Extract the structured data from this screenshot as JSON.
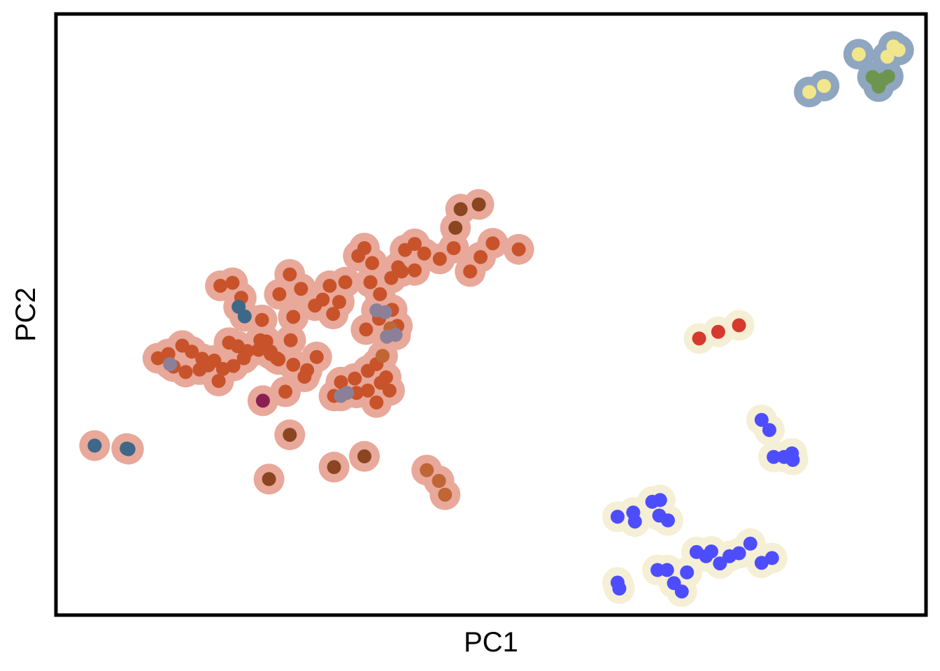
{
  "chart_data": {
    "type": "scatter",
    "xlabel": "PC1",
    "ylabel": "PC2",
    "xlim": [
      0,
      1
    ],
    "ylim": [
      0,
      1
    ],
    "grid": false,
    "ticks": false,
    "legend": "none",
    "halo_colors": {
      "salmon": "#e8a89a",
      "cream": "#f5efd5",
      "slate": "#8fa6c0"
    },
    "series": [
      {
        "color": "#c8532a",
        "halo": "salmon",
        "points": [
          [
            0.188,
            0.548
          ],
          [
            0.202,
            0.553
          ],
          [
            0.212,
            0.528
          ],
          [
            0.236,
            0.491
          ],
          [
            0.256,
            0.534
          ],
          [
            0.268,
            0.567
          ],
          [
            0.272,
            0.496
          ],
          [
            0.281,
            0.543
          ],
          [
            0.297,
            0.515
          ],
          [
            0.306,
            0.525
          ],
          [
            0.314,
            0.548
          ],
          [
            0.318,
            0.501
          ],
          [
            0.325,
            0.521
          ],
          [
            0.332,
            0.554
          ],
          [
            0.347,
            0.598
          ],
          [
            0.354,
            0.611
          ],
          [
            0.363,
            0.586
          ],
          [
            0.361,
            0.554
          ],
          [
            0.372,
            0.534
          ],
          [
            0.385,
            0.561
          ],
          [
            0.393,
            0.579
          ],
          [
            0.401,
            0.608
          ],
          [
            0.412,
            0.618
          ],
          [
            0.423,
            0.602
          ],
          [
            0.441,
            0.593
          ],
          [
            0.457,
            0.611
          ],
          [
            0.476,
            0.572
          ],
          [
            0.488,
            0.596
          ],
          [
            0.502,
            0.619
          ],
          [
            0.532,
            0.609
          ],
          [
            0.412,
            0.574
          ],
          [
            0.397,
            0.572
          ],
          [
            0.269,
            0.457
          ],
          [
            0.253,
            0.427
          ],
          [
            0.263,
            0.371
          ],
          [
            0.288,
            0.407
          ],
          [
            0.272,
            0.416
          ],
          [
            0.246,
            0.434
          ],
          [
            0.232,
            0.441
          ],
          [
            0.215,
            0.427
          ],
          [
            0.203,
            0.414
          ],
          [
            0.191,
            0.409
          ],
          [
            0.167,
            0.426
          ],
          [
            0.148,
            0.404
          ],
          [
            0.134,
            0.413
          ],
          [
            0.128,
            0.434
          ],
          [
            0.116,
            0.427
          ],
          [
            0.144,
            0.448
          ],
          [
            0.155,
            0.438
          ],
          [
            0.164,
            0.408
          ],
          [
            0.181,
            0.423
          ],
          [
            0.186,
            0.389
          ],
          [
            0.174,
            0.415
          ],
          [
            0.198,
            0.453
          ],
          [
            0.208,
            0.447
          ],
          [
            0.219,
            0.439
          ],
          [
            0.234,
            0.457
          ],
          [
            0.246,
            0.438
          ],
          [
            0.255,
            0.425
          ],
          [
            0.285,
            0.396
          ],
          [
            0.299,
            0.429
          ],
          [
            0.241,
            0.455
          ],
          [
            0.319,
            0.364
          ],
          [
            0.327,
            0.387
          ],
          [
            0.343,
            0.393
          ],
          [
            0.358,
            0.406
          ],
          [
            0.368,
            0.417
          ],
          [
            0.373,
            0.386
          ],
          [
            0.379,
            0.395
          ],
          [
            0.383,
            0.373
          ],
          [
            0.358,
            0.373
          ],
          [
            0.345,
            0.369
          ],
          [
            0.368,
            0.353
          ],
          [
            0.356,
            0.475
          ],
          [
            0.371,
            0.493
          ],
          [
            0.386,
            0.508
          ],
          [
            0.392,
            0.481
          ]
        ]
      },
      {
        "color": "#8b4520",
        "halo": "salmon",
        "points": [
          [
            0.465,
            0.676
          ],
          [
            0.486,
            0.684
          ],
          [
            0.459,
            0.645
          ],
          [
            0.268,
            0.299
          ],
          [
            0.354,
            0.263
          ],
          [
            0.319,
            0.245
          ],
          [
            0.244,
            0.225
          ]
        ]
      },
      {
        "color": "#c06535",
        "halo": "salmon",
        "points": [
          [
            0.384,
            0.477
          ],
          [
            0.375,
            0.431
          ],
          [
            0.426,
            0.24
          ],
          [
            0.44,
            0.222
          ],
          [
            0.447,
            0.199
          ]
        ]
      },
      {
        "color": "#3e6888",
        "halo": "salmon",
        "points": [
          [
            0.209,
            0.513
          ],
          [
            0.216,
            0.497
          ],
          [
            0.043,
            0.281
          ],
          [
            0.08,
            0.276
          ],
          [
            0.082,
            0.275
          ]
        ]
      },
      {
        "color": "#8c8098",
        "halo": "salmon",
        "points": [
          [
            0.327,
            0.364
          ],
          [
            0.334,
            0.369
          ],
          [
            0.368,
            0.507
          ],
          [
            0.378,
            0.504
          ],
          [
            0.38,
            0.463
          ],
          [
            0.39,
            0.466
          ],
          [
            0.13,
            0.417
          ]
        ]
      },
      {
        "color": "#8a1f55",
        "halo": "salmon",
        "points": [
          [
            0.237,
            0.356
          ]
        ]
      },
      {
        "color": "#d63a2c",
        "halo": "cream",
        "points": [
          [
            0.74,
            0.46
          ],
          [
            0.762,
            0.471
          ],
          [
            0.786,
            0.482
          ]
        ]
      },
      {
        "color": "#4d4dff",
        "halo": "cream",
        "points": [
          [
            0.812,
            0.324
          ],
          [
            0.821,
            0.307
          ],
          [
            0.826,
            0.262
          ],
          [
            0.838,
            0.262
          ],
          [
            0.847,
            0.268
          ],
          [
            0.848,
            0.257
          ],
          [
            0.646,
            0.162
          ],
          [
            0.664,
            0.169
          ],
          [
            0.666,
            0.154
          ],
          [
            0.686,
            0.187
          ],
          [
            0.695,
            0.19
          ],
          [
            0.694,
            0.164
          ],
          [
            0.704,
            0.156
          ],
          [
            0.648,
            0.042
          ],
          [
            0.646,
            0.052
          ],
          [
            0.692,
            0.073
          ],
          [
            0.703,
            0.073
          ],
          [
            0.711,
            0.051
          ],
          [
            0.72,
            0.037
          ],
          [
            0.726,
            0.069
          ],
          [
            0.737,
            0.103
          ],
          [
            0.748,
            0.096
          ],
          [
            0.754,
            0.104
          ],
          [
            0.764,
            0.084
          ],
          [
            0.775,
            0.096
          ],
          [
            0.786,
            0.101
          ],
          [
            0.799,
            0.117
          ],
          [
            0.812,
            0.085
          ],
          [
            0.824,
            0.093
          ]
        ]
      },
      {
        "color": "#f0e68c",
        "halo": "slate",
        "points": [
          [
            0.867,
            0.872
          ],
          [
            0.884,
            0.882
          ],
          [
            0.924,
            0.935
          ],
          [
            0.957,
            0.931
          ],
          [
            0.964,
            0.948
          ],
          [
            0.97,
            0.942
          ]
        ]
      },
      {
        "color": "#6e9550",
        "halo": "slate",
        "points": [
          [
            0.94,
            0.897
          ],
          [
            0.952,
            0.893
          ],
          [
            0.947,
            0.881
          ],
          [
            0.958,
            0.898
          ],
          [
            0.944,
            0.892
          ]
        ]
      }
    ]
  }
}
